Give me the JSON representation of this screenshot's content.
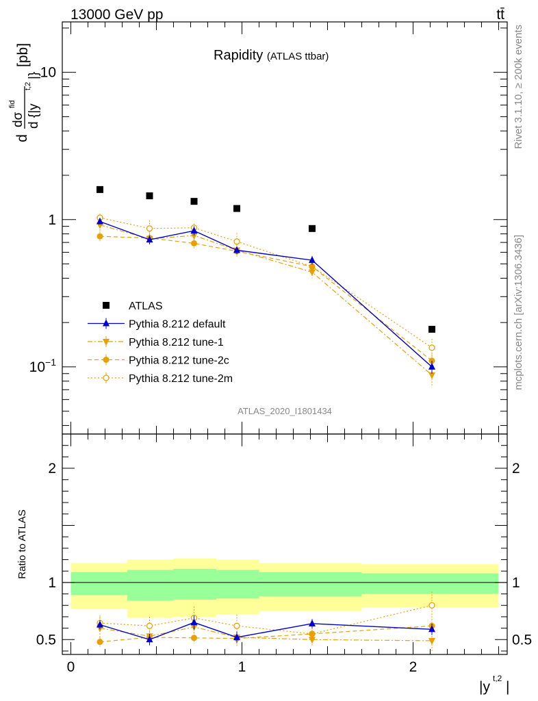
{
  "header": {
    "energy_label": "13000 GeV pp",
    "process_label": "tt̄"
  },
  "side_labels": {
    "rivet": "Rivet 3.1.10, ≥ 200k events",
    "mcplots": "mcplots.cern.ch [arXiv:1306.3436]"
  },
  "colors": {
    "atlas": "#000000",
    "default": "#0000cc",
    "tunes": "#e8a000",
    "band_outer": "#ffff99",
    "band_inner": "#99ff99",
    "side_text": "#888888"
  },
  "chart_data": [
    {
      "type": "scatter",
      "panel": "main",
      "title": "Rapidity",
      "subtitle": "(ATLAS ttbar)",
      "ylabel": "dσ^fid / d{|y^t,2|} [pb]",
      "ylabel_parts": {
        "d": "d",
        "sigma": "dσ",
        "fid": "fid",
        "denom": "d {|y",
        "sup": "t,2",
        "close": "|}",
        "unit": "[pb]"
      },
      "yscale": "log",
      "ylim": [
        0.035,
        22
      ],
      "xlim": [
        -0.05,
        2.55
      ],
      "yticks": [
        {
          "value": 0.1,
          "base": "10",
          "exp": "−1"
        },
        {
          "value": 1,
          "label": "1"
        },
        {
          "value": 10,
          "label": "10"
        }
      ],
      "analysis_label": "ATLAS_2020_I1801434",
      "legend_position": "lower-left",
      "series": [
        {
          "name": "ATLAS",
          "marker": "square",
          "line": "none",
          "x": [
            0.17,
            0.46,
            0.72,
            0.97,
            1.41,
            2.11
          ],
          "y": [
            1.6,
            1.45,
            1.33,
            1.19,
            0.87,
            0.18
          ]
        },
        {
          "name": "Pythia 8.212 default",
          "marker": "triangle-up",
          "line": "solid",
          "x": [
            0.17,
            0.46,
            0.72,
            0.97,
            1.41,
            2.11
          ],
          "y": [
            0.97,
            0.73,
            0.84,
            0.62,
            0.53,
            0.1
          ],
          "err": [
            0.04,
            0.05,
            0.06,
            0.04,
            0.035,
            0.01
          ]
        },
        {
          "name": "Pythia 8.212 tune-1",
          "marker": "triangle-down",
          "line": "dashdot",
          "x": [
            0.17,
            0.46,
            0.72,
            0.97,
            1.41,
            2.11
          ],
          "y": [
            0.92,
            0.74,
            0.78,
            0.62,
            0.44,
            0.088
          ],
          "err": [
            0.1,
            0.06,
            0.08,
            0.06,
            0.04,
            0.015
          ]
        },
        {
          "name": "Pythia 8.212 tune-2c",
          "marker": "circle",
          "line": "dashed",
          "x": [
            0.17,
            0.46,
            0.72,
            0.97,
            1.41,
            2.11
          ],
          "y": [
            0.77,
            0.75,
            0.69,
            0.61,
            0.48,
            0.11
          ],
          "err": [
            0.06,
            0.06,
            0.05,
            0.04,
            0.035,
            0.012
          ]
        },
        {
          "name": "Pythia 8.212 tune-2m",
          "marker": "open-circle",
          "line": "dotted",
          "x": [
            0.17,
            0.46,
            0.72,
            0.97,
            1.41,
            2.11
          ],
          "y": [
            1.03,
            0.87,
            0.88,
            0.71,
            0.48,
            0.135
          ],
          "err": [
            0.07,
            0.12,
            0.06,
            0.1,
            0.04,
            0.02
          ]
        }
      ]
    },
    {
      "type": "scatter",
      "panel": "ratio",
      "ylabel": "Ratio to ATLAS",
      "xlabel": "|y^t,2|",
      "xlabel_parts": {
        "base": "|y",
        "sup": "t,2",
        "close": "|"
      },
      "ylim": [
        0.37,
        2.3
      ],
      "xlim": [
        -0.05,
        2.55
      ],
      "yticks": [
        {
          "value": 0.5,
          "label": "0.5"
        },
        {
          "value": 1,
          "label": "1"
        },
        {
          "value": 2,
          "label": "2"
        }
      ],
      "xticks": [
        {
          "value": 0,
          "label": "0"
        },
        {
          "value": 1,
          "label": "1"
        },
        {
          "value": 2,
          "label": "2"
        }
      ],
      "reference_line": 1,
      "bands": [
        {
          "x_low": 0.0,
          "x_high": 0.33,
          "outer": [
            0.77,
            1.17
          ],
          "inner": [
            0.89,
            1.09
          ]
        },
        {
          "x_low": 0.33,
          "x_high": 0.6,
          "outer": [
            0.69,
            1.2
          ],
          "inner": [
            0.84,
            1.11
          ]
        },
        {
          "x_low": 0.6,
          "x_high": 0.85,
          "outer": [
            0.7,
            1.21
          ],
          "inner": [
            0.85,
            1.12
          ]
        },
        {
          "x_low": 0.85,
          "x_high": 1.1,
          "outer": [
            0.72,
            1.2
          ],
          "inner": [
            0.86,
            1.11
          ]
        },
        {
          "x_low": 1.1,
          "x_high": 1.7,
          "outer": [
            0.75,
            1.17
          ],
          "inner": [
            0.88,
            1.09
          ]
        },
        {
          "x_low": 1.7,
          "x_high": 2.5,
          "outer": [
            0.78,
            1.16
          ],
          "inner": [
            0.9,
            1.08
          ]
        }
      ],
      "series": [
        {
          "name": "Pythia 8.212 default",
          "marker": "triangle-up",
          "line": "solid",
          "x": [
            0.17,
            0.46,
            0.72,
            0.97,
            1.41,
            2.11
          ],
          "y": [
            0.63,
            0.5,
            0.65,
            0.52,
            0.64,
            0.59
          ],
          "err": [
            0.04,
            0.05,
            0.06,
            0.05,
            0.04,
            0.05
          ]
        },
        {
          "name": "Pythia 8.212 tune-1",
          "marker": "triangle-down",
          "line": "dashdot",
          "x": [
            0.17,
            0.46,
            0.72,
            0.97,
            1.41,
            2.11
          ],
          "y": [
            0.6,
            0.53,
            0.61,
            0.52,
            0.5,
            0.49
          ],
          "err": [
            0.1,
            0.07,
            0.1,
            0.08,
            0.06,
            0.09
          ]
        },
        {
          "name": "Pythia 8.212 tune-2c",
          "marker": "circle",
          "line": "dashed",
          "x": [
            0.17,
            0.46,
            0.72,
            0.97,
            1.41,
            2.11
          ],
          "y": [
            0.48,
            0.52,
            0.515,
            0.51,
            0.55,
            0.62
          ],
          "err": [
            0.04,
            0.05,
            0.05,
            0.05,
            0.05,
            0.06
          ]
        },
        {
          "name": "Pythia 8.212 tune-2m",
          "marker": "open-circle",
          "line": "dotted",
          "x": [
            0.17,
            0.46,
            0.72,
            0.97,
            1.41,
            2.11
          ],
          "y": [
            0.645,
            0.62,
            0.69,
            0.62,
            0.55,
            0.8
          ],
          "err": [
            0.07,
            0.08,
            0.1,
            0.1,
            0.06,
            0.12
          ]
        }
      ]
    }
  ]
}
